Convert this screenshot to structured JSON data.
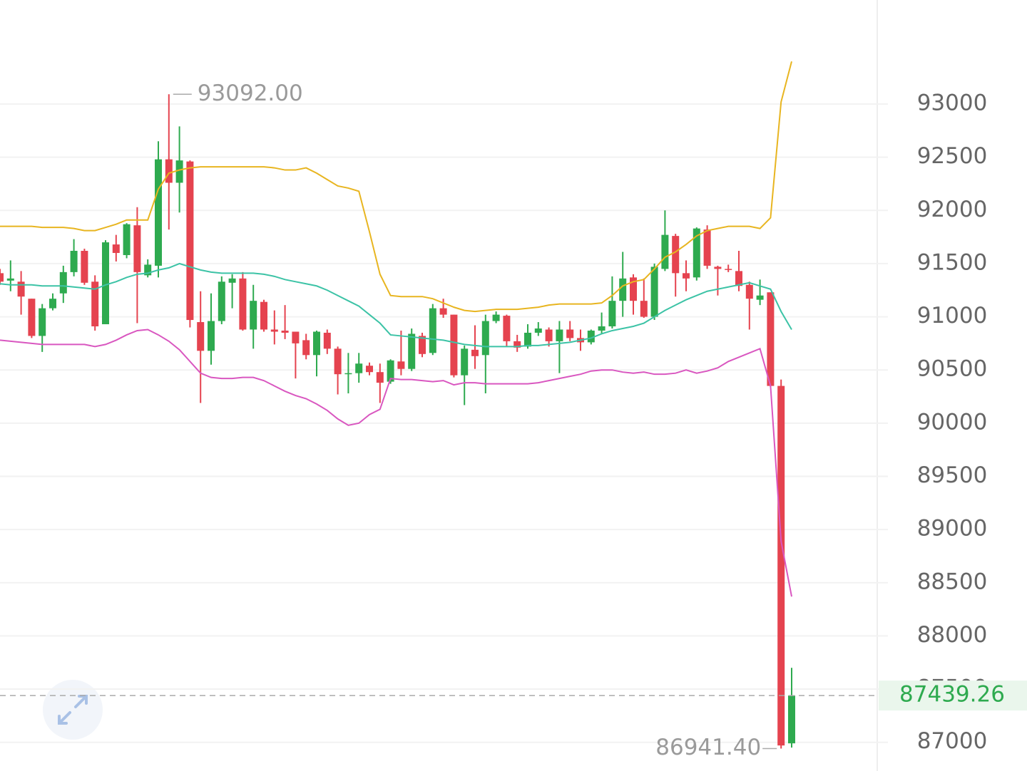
{
  "chart_data": {
    "type": "candlestick",
    "up_color": "#2eaa4f",
    "down_color": "#e5434f",
    "open": [
      91410,
      91340,
      91330,
      91170,
      90820,
      91080,
      91220,
      91420,
      91620,
      91330,
      90930,
      91680,
      91580,
      91860,
      91390,
      91480,
      92480,
      92260,
      92460,
      90950,
      90680,
      90960,
      91320,
      91360,
      90880,
      91140,
      90880,
      90870,
      90860,
      90780,
      90640,
      90850,
      90700,
      90460,
      90470,
      90540,
      90480,
      90390,
      90580,
      90510,
      90820,
      90660,
      91080,
      91020,
      90450,
      90690,
      90640,
      90960,
      91010,
      90770,
      90720,
      90850,
      90880,
      90770,
      90880,
      90800,
      90760,
      90870,
      90910,
      91150,
      91370,
      91150,
      91000,
      91450,
      91760,
      91410,
      91370,
      91820,
      91470,
      91450,
      91430,
      91300,
      91160,
      91230,
      90350,
      86990
    ],
    "high": [
      91450,
      91530,
      91430,
      91170,
      91120,
      91220,
      91480,
      91730,
      91640,
      91390,
      91720,
      91770,
      91880,
      92030,
      91540,
      92650,
      93092,
      92790,
      92470,
      91240,
      91220,
      91380,
      91400,
      91420,
      91300,
      91160,
      91060,
      91110,
      90860,
      90840,
      90870,
      90880,
      90720,
      90660,
      90660,
      90570,
      90560,
      90600,
      90870,
      90890,
      90850,
      91120,
      91170,
      91020,
      90730,
      90920,
      91020,
      91050,
      91020,
      90830,
      90930,
      90950,
      90900,
      90960,
      90960,
      90880,
      90880,
      91040,
      91380,
      91610,
      91400,
      91360,
      91500,
      92000,
      91780,
      91530,
      91840,
      91860,
      91480,
      91490,
      91620,
      91330,
      91350,
      91230,
      90410,
      87700
    ],
    "low": [
      91300,
      91240,
      91020,
      90800,
      90670,
      91060,
      91130,
      91380,
      91300,
      90870,
      90930,
      91520,
      91550,
      90940,
      91370,
      91370,
      91820,
      91980,
      90900,
      90190,
      90550,
      90930,
      91080,
      90870,
      90700,
      90860,
      90740,
      90790,
      90420,
      90600,
      90440,
      90650,
      90270,
      90280,
      90380,
      90450,
      90190,
      90370,
      90450,
      90490,
      90620,
      90640,
      90990,
      90430,
      90170,
      90510,
      90280,
      90940,
      90720,
      90670,
      90700,
      90820,
      90720,
      90470,
      90770,
      90680,
      90740,
      90840,
      90890,
      91000,
      91020,
      90990,
      90970,
      91430,
      91190,
      91240,
      91340,
      91450,
      91200,
      91420,
      91240,
      90880,
      91110,
      90340,
      86941.4,
      86950
    ],
    "close": [
      91330,
      91360,
      91190,
      90820,
      91080,
      91170,
      91420,
      91620,
      91320,
      90910,
      91700,
      91600,
      91870,
      91420,
      91490,
      92480,
      92260,
      92470,
      90970,
      90680,
      90960,
      91330,
      91360,
      90880,
      91150,
      90880,
      90860,
      90850,
      90750,
      90640,
      90860,
      90700,
      90460,
      90470,
      90560,
      90480,
      90380,
      90590,
      90510,
      90840,
      90650,
      91080,
      91020,
      90450,
      90700,
      90630,
      90960,
      91020,
      90770,
      90710,
      90850,
      90890,
      90770,
      90880,
      90800,
      90760,
      90870,
      90910,
      91150,
      91360,
      91150,
      91000,
      91470,
      91770,
      91410,
      91360,
      91830,
      91480,
      91450,
      91440,
      91290,
      91170,
      91200,
      90350,
      86970,
      87439.26
    ],
    "series": [
      {
        "color": "#e8b520",
        "values": [
          91850,
          91850,
          91850,
          91850,
          91840,
          91840,
          91840,
          91830,
          91810,
          91810,
          91840,
          91870,
          91910,
          91910,
          91910,
          92200,
          92350,
          92380,
          92400,
          92410,
          92410,
          92410,
          92410,
          92410,
          92410,
          92410,
          92400,
          92380,
          92380,
          92400,
          92350,
          92290,
          92230,
          92210,
          92180,
          91800,
          91400,
          91200,
          91190,
          91190,
          91190,
          91170,
          91130,
          91090,
          91060,
          91050,
          91060,
          91070,
          91070,
          91070,
          91080,
          91090,
          91110,
          91120,
          91120,
          91120,
          91120,
          91130,
          91200,
          91290,
          91330,
          91350,
          91450,
          91560,
          91610,
          91680,
          91760,
          91810,
          91830,
          91850,
          91850,
          91850,
          91830,
          91930,
          93020,
          93400
        ]
      },
      {
        "color": "#3cc3a6",
        "values": [
          91310,
          91300,
          91300,
          91300,
          91290,
          91290,
          91290,
          91280,
          91270,
          91260,
          91300,
          91330,
          91370,
          91400,
          91410,
          91440,
          91460,
          91500,
          91470,
          91440,
          91420,
          91410,
          91410,
          91410,
          91410,
          91400,
          91380,
          91350,
          91330,
          91310,
          91290,
          91250,
          91200,
          91150,
          91100,
          91020,
          90940,
          90830,
          90820,
          90810,
          90800,
          90790,
          90780,
          90760,
          90740,
          90730,
          90720,
          90720,
          90720,
          90720,
          90730,
          90730,
          90740,
          90750,
          90760,
          90780,
          90800,
          90840,
          90870,
          90890,
          90910,
          90940,
          91000,
          91060,
          91110,
          91160,
          91200,
          91240,
          91260,
          91280,
          91300,
          91320,
          91290,
          91260,
          91050,
          90880
        ]
      },
      {
        "color": "#d957c0",
        "values": [
          90780,
          90770,
          90760,
          90750,
          90740,
          90740,
          90740,
          90740,
          90740,
          90720,
          90740,
          90780,
          90830,
          90870,
          90880,
          90830,
          90770,
          90690,
          90580,
          90470,
          90430,
          90420,
          90420,
          90430,
          90430,
          90400,
          90350,
          90300,
          90260,
          90230,
          90180,
          90120,
          90040,
          89980,
          90000,
          90080,
          90130,
          90420,
          90410,
          90410,
          90400,
          90390,
          90400,
          90360,
          90380,
          90380,
          90370,
          90370,
          90370,
          90370,
          90370,
          90380,
          90400,
          90420,
          90440,
          90460,
          90490,
          90500,
          90500,
          90480,
          90470,
          90480,
          90460,
          90460,
          90470,
          90500,
          90470,
          90490,
          90520,
          90580,
          90620,
          90660,
          90700,
          90350,
          88890,
          88370
        ]
      }
    ],
    "ylim": [
      86730,
      93978
    ],
    "yticks": [
      87000,
      87500,
      88000,
      88500,
      89000,
      89500,
      90000,
      90500,
      91000,
      91500,
      92000,
      92500,
      93000
    ],
    "grid": true,
    "high_label": {
      "value": 93092,
      "label": "93092.00"
    },
    "low_label": {
      "value": 86941.4,
      "label": "86941.40"
    },
    "last_price": {
      "value": 87439.26,
      "label": "87439.26"
    }
  }
}
